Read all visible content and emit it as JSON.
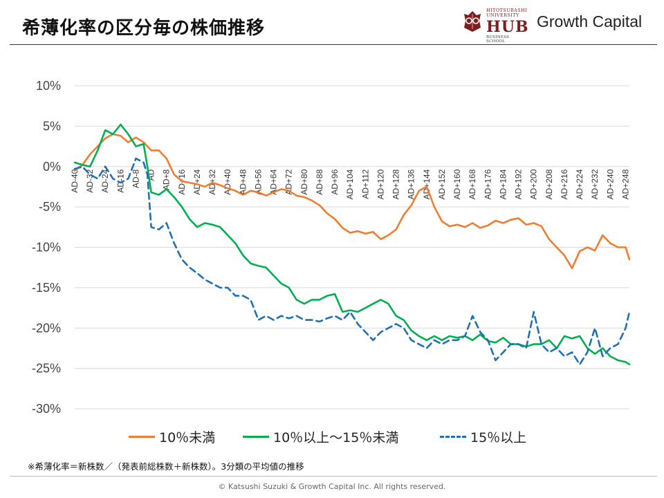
{
  "header": {
    "title": "希薄化率の区分毎の株価推移",
    "logo_university": "HITOTSUBASHI UNIVERSITY",
    "logo_hub": "HUB",
    "logo_school": "BUSINESS SCHOOL",
    "brand": "Growth Capital"
  },
  "footer": {
    "note": "※希薄化率＝新株数／（発表前総株数＋新株数）。3分類の平均値の推移",
    "copyright": "© Katsushi Suzuki & Growth Capital Inc. All rights reserved."
  },
  "chart_data": {
    "type": "line",
    "title": "",
    "xlabel": "",
    "ylabel": "",
    "ylim": [
      -30,
      10
    ],
    "yticks": [
      10,
      5,
      0,
      -5,
      -10,
      -15,
      -20,
      -25,
      -30
    ],
    "ytick_labels": [
      "10%",
      "5%",
      "0%",
      "-5%",
      "-10%",
      "-15%",
      "-20%",
      "-25%",
      "-30%"
    ],
    "grid": true,
    "legend_position": "bottom",
    "x_range": [
      -40,
      250
    ],
    "xtick_labels": [
      "AD-40",
      "AD-32",
      "AD-24",
      "AD-16",
      "AD-8",
      "AD",
      "AD+8",
      "AD+16",
      "AD+24",
      "AD+32",
      "AD+40",
      "AD+48",
      "AD+56",
      "AD+64",
      "AD+72",
      "AD+80",
      "AD+88",
      "AD+96",
      "AD+104",
      "AD+112",
      "AD+120",
      "AD+128",
      "AD+136",
      "AD+144",
      "AD+152",
      "AD+160",
      "AD+168",
      "AD+176",
      "AD+184",
      "AD+192",
      "AD+200",
      "AD+208",
      "AD+216",
      "AD+224",
      "AD+232",
      "AD+240",
      "AD+248"
    ],
    "series": [
      {
        "name": "10％未満",
        "color": "#ED7D31",
        "dash": "solid",
        "x": [
          -40,
          -36,
          -32,
          -28,
          -24,
          -20,
          -16,
          -12,
          -8,
          -4,
          0,
          4,
          8,
          12,
          16,
          20,
          24,
          28,
          32,
          36,
          40,
          44,
          48,
          52,
          56,
          60,
          64,
          68,
          72,
          76,
          80,
          84,
          88,
          92,
          96,
          100,
          104,
          108,
          112,
          116,
          120,
          124,
          128,
          132,
          136,
          140,
          144,
          148,
          152,
          156,
          160,
          164,
          168,
          172,
          176,
          180,
          184,
          188,
          192,
          196,
          200,
          204,
          208,
          212,
          216,
          220,
          224,
          228,
          232,
          236,
          240,
          244,
          248,
          250
        ],
        "values": [
          -0.5,
          0.2,
          1.5,
          2.5,
          3.5,
          4.0,
          3.8,
          3.0,
          3.6,
          3.0,
          2.0,
          2.0,
          1.0,
          -1.0,
          -1.8,
          -2.0,
          -2.2,
          -2.5,
          -2.0,
          -2.3,
          -2.7,
          -3.0,
          -3.5,
          -3.0,
          -3.2,
          -3.6,
          -3.2,
          -2.8,
          -3.0,
          -3.6,
          -3.8,
          -4.2,
          -4.8,
          -5.8,
          -6.5,
          -7.6,
          -8.2,
          -8.0,
          -8.3,
          -8.1,
          -9.0,
          -8.5,
          -7.8,
          -6.0,
          -4.8,
          -3.0,
          -2.5,
          -5.0,
          -6.8,
          -7.4,
          -7.2,
          -7.5,
          -7.0,
          -7.6,
          -7.3,
          -6.7,
          -7.0,
          -6.6,
          -6.4,
          -7.2,
          -7.0,
          -7.4,
          -9.0,
          -10.0,
          -11.0,
          -12.6,
          -10.5,
          -10.0,
          -10.4,
          -8.5,
          -9.5,
          -10.0,
          -10.0,
          -11.5
        ]
      },
      {
        "name": "10％以上～15％未満",
        "color": "#00B050",
        "dash": "solid",
        "x": [
          -40,
          -36,
          -32,
          -28,
          -24,
          -20,
          -16,
          -12,
          -8,
          -4,
          -2,
          0,
          4,
          8,
          12,
          16,
          20,
          24,
          28,
          32,
          36,
          40,
          44,
          48,
          52,
          56,
          60,
          64,
          68,
          72,
          76,
          80,
          84,
          88,
          92,
          96,
          100,
          104,
          108,
          112,
          116,
          120,
          124,
          128,
          132,
          136,
          140,
          144,
          148,
          152,
          156,
          160,
          164,
          168,
          172,
          176,
          180,
          184,
          188,
          192,
          196,
          200,
          204,
          208,
          212,
          216,
          220,
          224,
          228,
          232,
          236,
          240,
          244,
          248,
          250
        ],
        "values": [
          0.5,
          0.2,
          0.0,
          2.0,
          4.5,
          4.0,
          5.2,
          4.0,
          2.5,
          2.8,
          0.0,
          -3.2,
          -3.5,
          -2.8,
          -3.8,
          -5.0,
          -6.5,
          -7.5,
          -7.0,
          -7.2,
          -7.5,
          -8.5,
          -9.5,
          -11.0,
          -12.0,
          -12.3,
          -12.5,
          -13.5,
          -14.5,
          -15.0,
          -16.5,
          -17.0,
          -16.5,
          -16.5,
          -16.0,
          -15.8,
          -18.0,
          -17.8,
          -18.0,
          -17.5,
          -17.0,
          -16.5,
          -17.0,
          -18.5,
          -19.0,
          -20.3,
          -21.0,
          -21.5,
          -21.0,
          -21.5,
          -21.0,
          -21.2,
          -21.0,
          -21.5,
          -20.8,
          -21.6,
          -21.8,
          -21.2,
          -22.0,
          -22.0,
          -22.3,
          -22.0,
          -22.0,
          -21.5,
          -22.5,
          -21.0,
          -21.3,
          -21.0,
          -22.5,
          -23.2,
          -22.5,
          -23.5,
          -24.0,
          -24.2,
          -24.5
        ]
      },
      {
        "name": "15％以上",
        "color": "#1F6FB5",
        "dash": "dashed",
        "x": [
          -40,
          -36,
          -32,
          -28,
          -24,
          -20,
          -16,
          -12,
          -8,
          -4,
          -2,
          0,
          4,
          8,
          12,
          16,
          20,
          24,
          28,
          32,
          36,
          40,
          44,
          48,
          52,
          56,
          60,
          64,
          68,
          72,
          76,
          80,
          84,
          88,
          92,
          96,
          100,
          104,
          108,
          112,
          116,
          120,
          124,
          128,
          132,
          136,
          140,
          144,
          148,
          152,
          156,
          160,
          164,
          168,
          172,
          176,
          180,
          184,
          188,
          192,
          196,
          200,
          204,
          208,
          212,
          216,
          220,
          224,
          228,
          232,
          236,
          240,
          244,
          248,
          250
        ],
        "values": [
          -0.3,
          0.0,
          -1.0,
          -1.5,
          0.0,
          -1.5,
          -2.0,
          -1.5,
          1.0,
          0.5,
          -1.0,
          -7.5,
          -7.8,
          -7.0,
          -9.5,
          -11.5,
          -12.5,
          -13.2,
          -14.0,
          -14.5,
          -15.0,
          -15.0,
          -16.0,
          -16.0,
          -16.5,
          -19.0,
          -18.5,
          -19.0,
          -18.5,
          -18.8,
          -18.5,
          -19.0,
          -19.0,
          -19.2,
          -18.8,
          -18.5,
          -19.0,
          -18.0,
          -19.5,
          -20.5,
          -21.5,
          -20.5,
          -20.0,
          -19.5,
          -20.0,
          -21.5,
          -22.0,
          -22.5,
          -21.5,
          -22.0,
          -21.5,
          -21.5,
          -21.0,
          -18.5,
          -20.5,
          -21.5,
          -24.0,
          -23.0,
          -22.0,
          -22.0,
          -22.5,
          -18.0,
          -22.0,
          -23.0,
          -22.5,
          -23.5,
          -23.0,
          -24.5,
          -23.0,
          -20.0,
          -23.5,
          -22.5,
          -22.0,
          -20.0,
          -18.0
        ]
      }
    ]
  }
}
